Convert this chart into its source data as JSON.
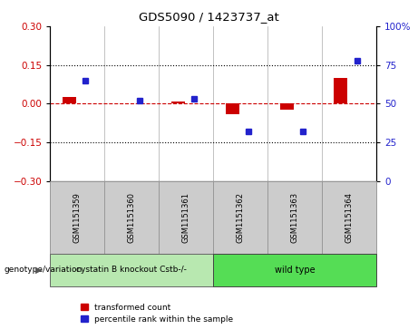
{
  "title": "GDS5090 / 1423737_at",
  "samples": [
    "GSM1151359",
    "GSM1151360",
    "GSM1151361",
    "GSM1151362",
    "GSM1151363",
    "GSM1151364"
  ],
  "transformed_counts": [
    0.025,
    0.002,
    0.008,
    -0.04,
    -0.025,
    0.1
  ],
  "percentile_ranks": [
    65,
    52,
    53,
    32,
    32,
    78
  ],
  "group1_label": "cystatin B knockout Cstb-/-",
  "group2_label": "wild type",
  "group1_color": "#b8e8b0",
  "group2_color": "#55dd55",
  "bar_color_red": "#cc0000",
  "bar_color_blue": "#2222cc",
  "ylim_left": [
    -0.3,
    0.3
  ],
  "ylim_right": [
    0,
    100
  ],
  "yticks_left": [
    -0.3,
    -0.15,
    0.0,
    0.15,
    0.3
  ],
  "yticks_right": [
    0,
    25,
    50,
    75,
    100
  ],
  "dotted_lines": [
    -0.15,
    0.15
  ],
  "bar_width": 0.25,
  "label_transformed": "transformed count",
  "label_percentile": "percentile rank within the sample",
  "genotype_label": "genotype/variation",
  "sample_box_color": "#cccccc",
  "sample_box_edge": "#999999"
}
